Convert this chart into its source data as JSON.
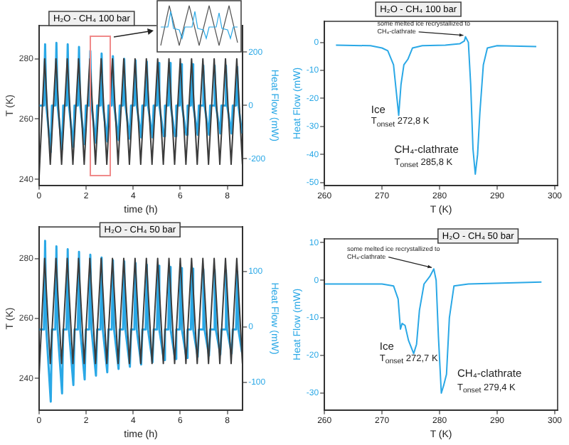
{
  "chart_data": [
    {
      "type": "line",
      "title": "H₂O - CH₄ 100 bar",
      "xlabel": "time (h)",
      "ylabel": "T (K)",
      "y2label": "Heat Flow (mW)",
      "xlim": [
        0,
        8.65
      ],
      "xticks": [
        0,
        2,
        4,
        6,
        8
      ],
      "ylim": [
        238,
        291
      ],
      "yticks": [
        240,
        260,
        280
      ],
      "y2lim": [
        -300,
        300
      ],
      "y2ticks": [
        -200,
        0,
        200
      ],
      "series": [
        {
          "color": "#3c3c3c",
          "x": [
            0,
            0.24,
            0.48,
            0.72,
            0.96,
            1.2,
            1.44,
            1.68,
            1.92,
            2.16,
            2.4,
            2.64,
            2.88,
            3.12,
            3.36,
            3.6,
            3.84,
            4.08,
            4.32,
            4.56,
            4.8,
            5.04,
            5.28,
            5.52,
            5.76,
            6.0,
            6.24,
            6.48,
            6.72,
            6.96,
            7.2,
            7.44,
            7.68,
            7.92,
            8.16,
            8.4,
            8.64
          ],
          "values": [
            240,
            280,
            245,
            280,
            245,
            280,
            245,
            280,
            245,
            280,
            245,
            280,
            245,
            280,
            245,
            280,
            245,
            280,
            245,
            280,
            245,
            280,
            245,
            280,
            245,
            280,
            245,
            280,
            245,
            280,
            245,
            280,
            245,
            280,
            245,
            280,
            245
          ]
        },
        {
          "color": "#2aa8e6",
          "axis": "y2",
          "x": [
            0,
            0.21,
            0.26,
            0.31,
            0.5,
            0.55,
            0.69,
            0.74,
            0.79,
            0.98,
            1.03,
            1.17,
            1.22,
            1.27,
            1.46,
            1.51,
            1.65,
            1.7,
            1.75,
            1.94,
            1.99,
            2.13,
            2.18,
            2.23,
            2.42,
            2.47,
            2.61,
            2.66,
            2.71,
            2.9,
            2.95,
            3.09,
            3.14,
            3.19,
            3.38,
            3.43,
            3.57,
            3.62,
            3.67,
            3.86,
            3.91,
            4.05,
            4.1,
            4.15,
            4.34,
            4.39,
            4.53,
            4.58,
            4.63,
            4.82,
            4.87,
            5.01,
            5.06,
            5.11,
            5.3,
            5.35,
            5.49,
            5.54,
            5.59,
            5.78,
            5.83,
            5.97,
            6.02,
            6.07,
            6.26,
            6.31,
            6.45,
            6.5,
            6.55,
            6.74,
            6.79,
            6.93,
            6.98,
            7.03,
            7.22,
            7.27,
            7.41,
            7.46,
            7.51,
            7.7,
            7.75,
            7.89,
            7.94,
            7.99,
            8.18,
            8.23,
            8.37,
            8.42,
            8.47,
            8.62
          ],
          "values": [
            0,
            0,
            230,
            0,
            -175,
            0,
            0,
            235,
            0,
            -165,
            0,
            0,
            230,
            0,
            -155,
            0,
            0,
            220,
            0,
            -145,
            0,
            0,
            205,
            0,
            -140,
            0,
            0,
            195,
            0,
            -135,
            0,
            0,
            185,
            0,
            -130,
            0,
            0,
            175,
            0,
            -125,
            0,
            0,
            170,
            0,
            -120,
            0,
            0,
            165,
            0,
            -120,
            0,
            0,
            160,
            0,
            -115,
            0,
            0,
            160,
            0,
            -115,
            0,
            0,
            155,
            0,
            -110,
            0,
            0,
            155,
            0,
            -110,
            0,
            0,
            150,
            0,
            -110,
            0,
            0,
            150,
            0,
            -105,
            0,
            0,
            150,
            0,
            -105,
            0,
            0,
            145,
            0,
            -105
          ]
        }
      ]
    },
    {
      "type": "line",
      "title": "H₂O - CH₄ 100 bar",
      "xlabel": "T (K)",
      "ylabel": "Heat Flow (mW)",
      "xlim": [
        260,
        300.5
      ],
      "xticks": [
        260,
        270,
        280,
        290,
        300
      ],
      "ylim": [
        -51,
        7.5
      ],
      "yticks": [
        -50,
        -40,
        -30,
        -20,
        -10,
        0
      ],
      "annotations": [
        {
          "text": "some melted ice recrystallized to CH₄-clathrate",
          "x": 284.5,
          "y": 2
        },
        "Ice",
        "T$_{onset}$ 272,8 K",
        "CH₄-clathrate",
        "T$_{onset}$ 285,8 K"
      ],
      "series": [
        {
          "color": "#2aa8e6",
          "x": [
            262,
            268,
            270,
            271,
            272,
            272.5,
            272.9,
            273.3,
            273.8,
            274.5,
            275.3,
            277,
            281,
            283.5,
            284.3,
            284.5,
            285,
            285.4,
            285.8,
            286.2,
            286.6,
            287,
            287.6,
            288.3,
            290,
            296.8
          ],
          "values": [
            -1,
            -1.2,
            -2,
            -3,
            -8,
            -18,
            -26,
            -15,
            -8,
            -6,
            -2,
            -1.2,
            -1,
            -0.5,
            0.5,
            2,
            0,
            -15,
            -38,
            -47,
            -40,
            -25,
            -8,
            -2,
            -1.2,
            -1.5
          ]
        }
      ]
    },
    {
      "type": "line",
      "title": "H₂O - CH₄ 50 bar",
      "xlabel": "time (h)",
      "ylabel": "T (K)",
      "y2label": "Heat Flow (mW)",
      "xlim": [
        0,
        8.65
      ],
      "xticks": [
        0,
        2,
        4,
        6,
        8
      ],
      "ylim": [
        229.5,
        290.5
      ],
      "yticks": [
        240,
        260,
        280
      ],
      "y2lim": [
        -150,
        180
      ],
      "y2ticks": [
        -100,
        0,
        100
      ],
      "series": [
        {
          "color": "#3c3c3c",
          "x": [
            0,
            0.24,
            0.48,
            0.72,
            0.96,
            1.2,
            1.44,
            1.68,
            1.92,
            2.16,
            2.4,
            2.64,
            2.88,
            3.12,
            3.36,
            3.6,
            3.84,
            4.08,
            4.32,
            4.56,
            4.8,
            5.04,
            5.28,
            5.52,
            5.76,
            6.0,
            6.24,
            6.48,
            6.72,
            6.96,
            7.2,
            7.44,
            7.68,
            7.92,
            8.16,
            8.4,
            8.64
          ],
          "values": [
            240,
            280,
            245,
            280,
            245,
            280,
            245,
            280,
            245,
            280,
            245,
            280,
            245,
            280,
            245,
            280,
            245,
            280,
            245,
            280,
            245,
            280,
            245,
            280,
            245,
            280,
            245,
            280,
            245,
            280,
            245,
            280,
            245,
            280,
            245,
            280,
            245
          ]
        },
        {
          "color": "#2aa8e6",
          "axis": "y2",
          "x": [
            0,
            0.21,
            0.26,
            0.31,
            0.5,
            0.55,
            0.69,
            0.74,
            0.79,
            0.98,
            1.03,
            1.17,
            1.22,
            1.27,
            1.46,
            1.51,
            1.65,
            1.7,
            1.75,
            1.94,
            1.99,
            2.13,
            2.18,
            2.23,
            2.42,
            2.47,
            2.61,
            2.66,
            2.71,
            2.9,
            2.95,
            3.09,
            3.14,
            3.19,
            3.38,
            3.43,
            3.57,
            3.62,
            3.67,
            3.86,
            3.91,
            4.05,
            4.1,
            4.15,
            4.34,
            4.39,
            4.53,
            4.58,
            4.63,
            4.82,
            4.87,
            5.01,
            5.06,
            5.11,
            5.3,
            5.35,
            5.49,
            5.54,
            5.59,
            5.78,
            5.83,
            5.97,
            6.02,
            6.07,
            6.26,
            6.31,
            6.45,
            6.5,
            6.55,
            6.74,
            6.79,
            6.93,
            6.98,
            7.03,
            7.22,
            7.27,
            7.41,
            7.46,
            7.51,
            7.7,
            7.75,
            7.89,
            7.94,
            7.99,
            8.18,
            8.23,
            8.37,
            8.42,
            8.47,
            8.62
          ],
          "values": [
            -5,
            -5,
            155,
            -5,
            -135,
            -5,
            -5,
            145,
            -5,
            -120,
            -5,
            -5,
            140,
            -5,
            -105,
            -5,
            -5,
            135,
            -5,
            -95,
            -5,
            -5,
            130,
            -5,
            -88,
            -5,
            -5,
            125,
            -5,
            -82,
            -5,
            -5,
            120,
            -5,
            -76,
            -5,
            -5,
            118,
            -5,
            -72,
            -5,
            -5,
            115,
            -5,
            -68,
            -5,
            -5,
            112,
            -5,
            -64,
            -5,
            -5,
            110,
            -5,
            -60,
            -5,
            -5,
            108,
            -5,
            -58,
            -5,
            -5,
            106,
            -5,
            -56,
            -5,
            -5,
            105,
            -5,
            -54,
            -5,
            -5,
            104,
            -5,
            -52,
            -5,
            -5,
            103,
            -5,
            -50,
            -5,
            -5,
            102,
            -5,
            -48,
            -5,
            -5,
            100,
            -5,
            -46
          ]
        }
      ]
    },
    {
      "type": "line",
      "title": "H₂O - CH₄ 50 bar",
      "xlabel": "T (K)",
      "ylabel": "Heat Flow (mW)",
      "xlim": [
        260,
        300.5
      ],
      "xticks": [
        260,
        270,
        280,
        290,
        300
      ],
      "ylim": [
        -34.5,
        11
      ],
      "yticks": [
        -30,
        -20,
        -10,
        0,
        10
      ],
      "annotations": [
        {
          "text": "some melted ice recrystallized to CH₄-clathrate",
          "x": 279,
          "y": 3
        },
        "Ice",
        "T$_{onset}$ 272,7 K",
        "CH₄-clathrate",
        "T$_{onset}$ 279,4 K"
      ],
      "series": [
        {
          "color": "#2aa8e6",
          "x": [
            260,
            270,
            272,
            272.8,
            273.2,
            273.5,
            274,
            274.6,
            275.5,
            276,
            276.5,
            277.3,
            278.3,
            279,
            279.4,
            279.8,
            280.3,
            280.7,
            281.2,
            281.7,
            282.5,
            285,
            297.7
          ],
          "values": [
            -1,
            -1,
            -1.5,
            -5,
            -13,
            -11.5,
            -12,
            -16,
            -19.5,
            -17,
            -8,
            -1,
            1,
            3,
            0,
            -15,
            -30,
            -28,
            -25,
            -10,
            -1.5,
            -1,
            -0.5
          ]
        }
      ]
    }
  ]
}
